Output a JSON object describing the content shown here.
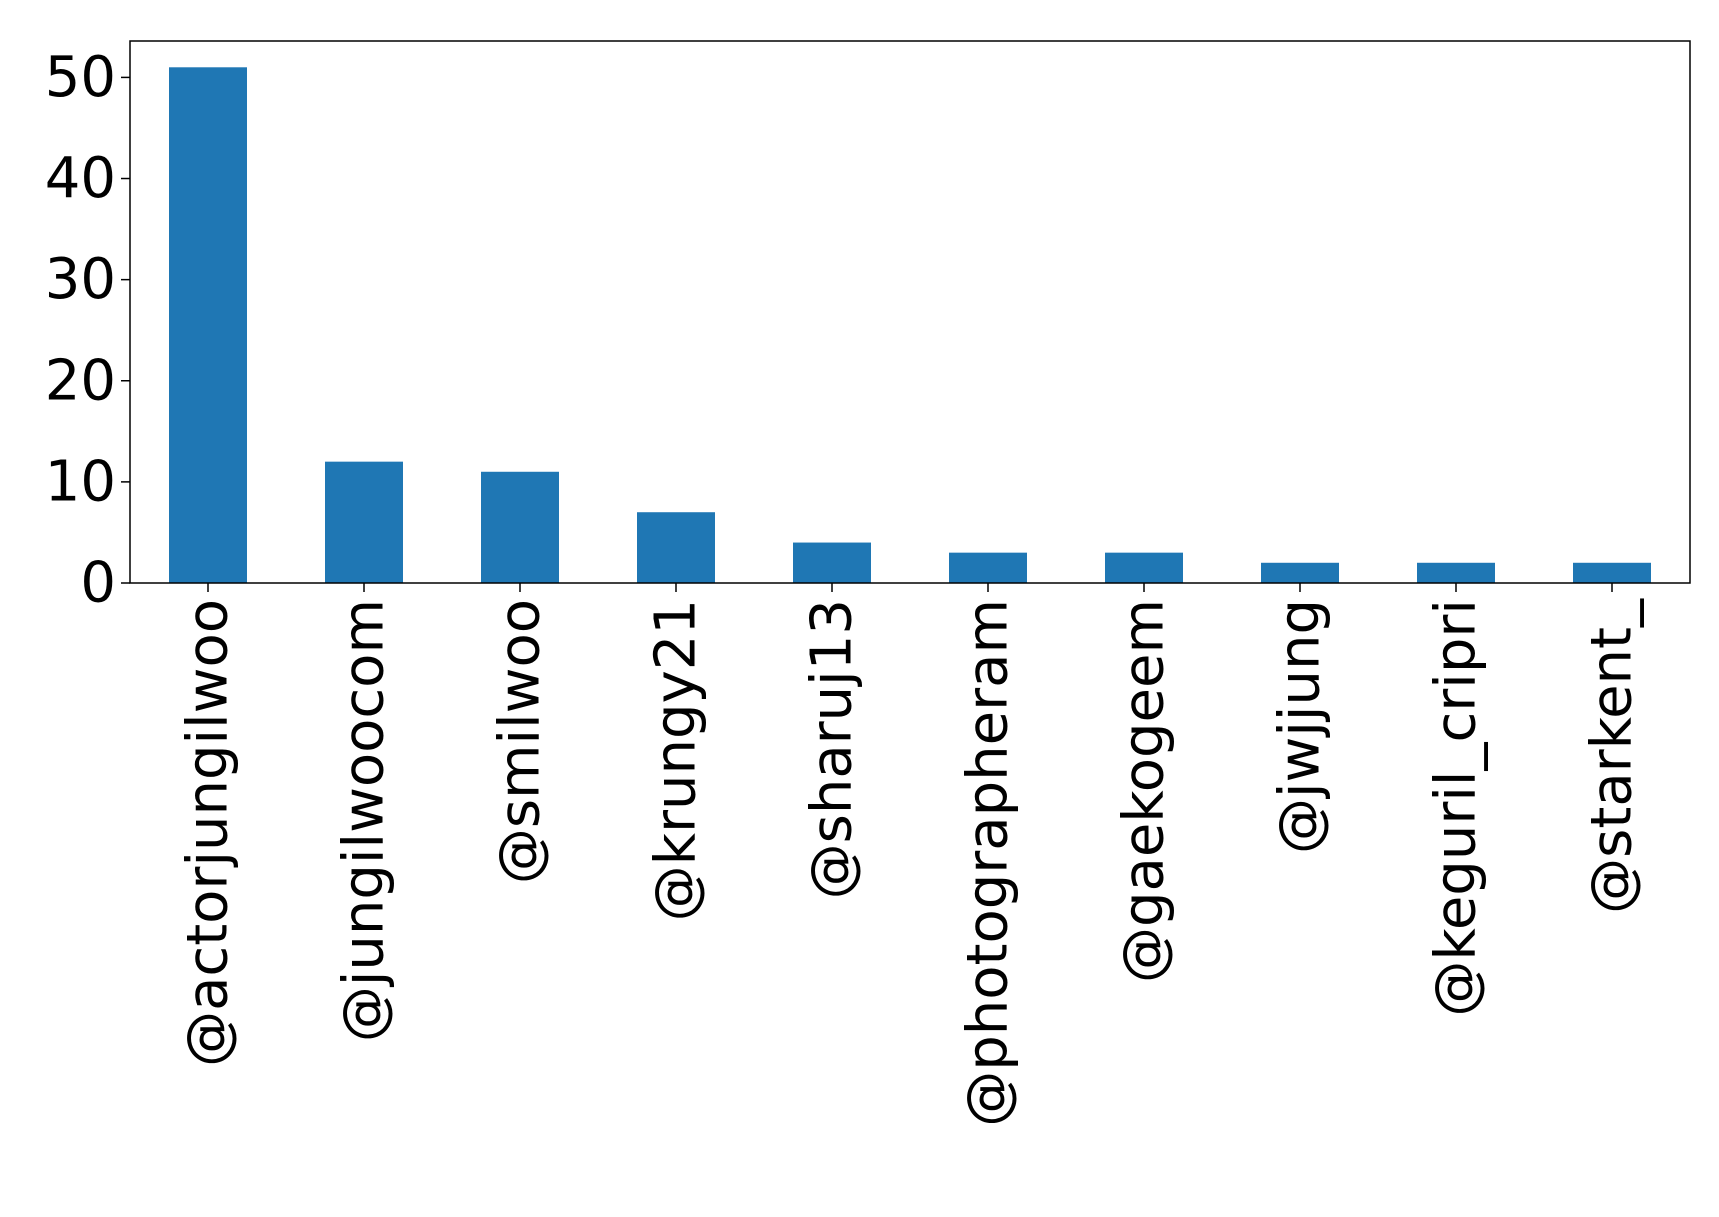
{
  "chart_data": {
    "type": "bar",
    "title": "",
    "xlabel": "",
    "ylabel": "",
    "categories": [
      "@actorjungilwoo",
      "@jungilwoocom",
      "@smilwoo",
      "@krungy21",
      "@sharuj13",
      "@photographeram",
      "@gaekogeem",
      "@jwjjung",
      "@keguril_cripri",
      "@starkent_"
    ],
    "values": [
      51,
      12,
      11,
      7,
      4,
      3,
      3,
      2,
      2,
      2
    ],
    "yticks": [
      0,
      10,
      20,
      30,
      40,
      50
    ],
    "ylim": [
      0,
      53.6
    ],
    "grid": false,
    "legend": "none",
    "bar_color": "#1f77b4",
    "axis_color": "#000000"
  }
}
